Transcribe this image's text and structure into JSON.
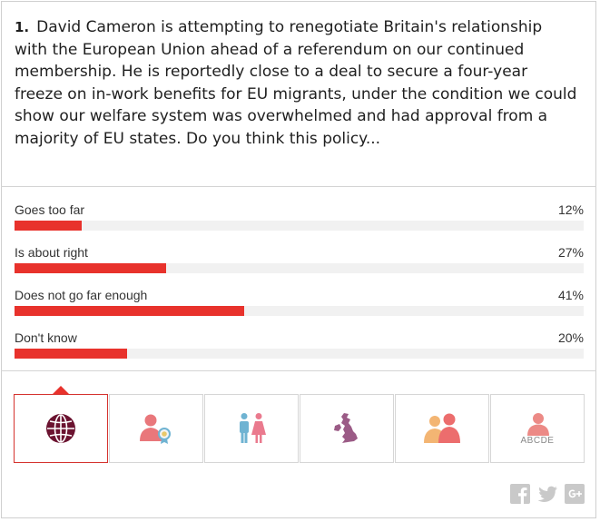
{
  "question": {
    "number": "1.",
    "text": "David Cameron is attempting to renegotiate Britain's relationship with the European Union ahead of a referendum on our continued membership. He is reportedly close to a deal to secure a four-year freeze on in-work benefits for EU migrants, under the condition we could show our welfare system was overwhelmed and had approval from a majority of EU states.  Do you think this policy..."
  },
  "answers": [
    {
      "label": "Goes too far",
      "percent_text": "12%",
      "value": 12
    },
    {
      "label": "Is about right",
      "percent_text": "27%",
      "value": 27
    },
    {
      "label": "Does not go far enough",
      "percent_text": "41%",
      "value": 41
    },
    {
      "label": "Don't know",
      "percent_text": "20%",
      "value": 20
    }
  ],
  "colors": {
    "bar_fill": "#e8322c",
    "bar_track": "#f1f1f1",
    "active_border": "#d5332e"
  },
  "tabs": [
    {
      "icon": "globe-icon",
      "active": true
    },
    {
      "icon": "person-award-icon",
      "active": false
    },
    {
      "icon": "male-female-icon",
      "active": false
    },
    {
      "icon": "uk-map-icon",
      "active": false
    },
    {
      "icon": "age-groups-icon",
      "active": false
    },
    {
      "icon": "social-grade-icon",
      "active": false,
      "caption": "ABCDE"
    }
  ],
  "share": [
    "facebook-icon",
    "twitter-icon",
    "google-plus-icon"
  ]
}
